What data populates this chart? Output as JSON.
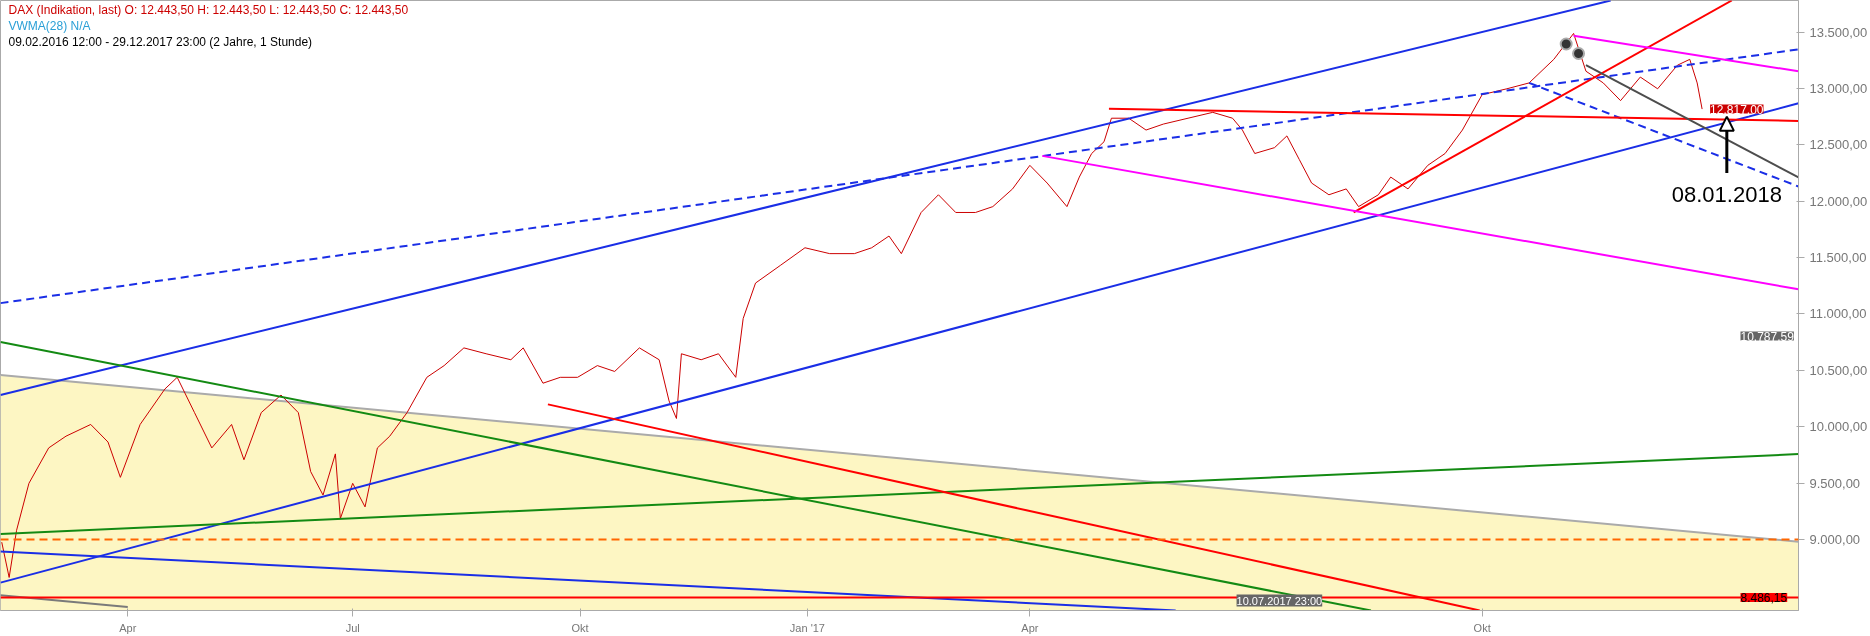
{
  "chart_data": {
    "type": "line",
    "title": "DAX (Indikation, last)  O: 12.443,50  H: 12.443,50  L: 12.443,50  C: 12.443,50",
    "subtitle": "VWMA(28)  N/A",
    "annotations": [
      "09.02.2016 12:00 - 29.12.2017 23:00   (2 Jahre, 1 Stunde)",
      {
        "text": "08.01.2018",
        "x": "2018-01-08",
        "y": 12750
      },
      "10.787,59",
      {
        "text": "10.07.2017 23:00",
        "x": "2017-07-10T23:00"
      }
    ],
    "xlim": [
      "2016-02-09T12:00",
      "2018-02-06"
    ],
    "xticks": [
      {
        "value": "2016-04-01",
        "label": "Apr"
      },
      {
        "value": "2016-07-01",
        "label": "Jul"
      },
      {
        "value": "2016-10-01",
        "label": "Okt"
      },
      {
        "value": "2017-01-01",
        "label": "Jan '17"
      },
      {
        "value": "2017-04-01",
        "label": "Apr"
      },
      {
        "value": "2017-10-01",
        "label": "Okt"
      }
    ],
    "ylim": [
      8370,
      13780
    ],
    "yticks": [
      {
        "value": 9000,
        "label": "9.000,00"
      },
      {
        "value": 9500,
        "label": "9.500,00"
      },
      {
        "value": 10000,
        "label": "10.000,00"
      },
      {
        "value": 10500,
        "label": "10.500,00"
      },
      {
        "value": 11000,
        "label": "11.000,00"
      },
      {
        "value": 11500,
        "label": "11.500,00"
      },
      {
        "value": 12000,
        "label": "12.000,00"
      },
      {
        "value": 12500,
        "label": "12.500,00"
      },
      {
        "value": 13000,
        "label": "13.000,00"
      },
      {
        "value": 13500,
        "label": "13.500,00"
      }
    ],
    "ref_lines": [
      {
        "axis": "y",
        "value": 8486.15,
        "label": "8.486,15",
        "color": "#ff0000",
        "line_style": "solid"
      },
      {
        "axis": "y",
        "value": 9000,
        "color": "#ff6600",
        "line_style": "dashed"
      }
    ],
    "series": [
      {
        "type": "area",
        "color": "#fdf6c3",
        "x": [
          "2016-02-09T12:00",
          "2018-02-06"
        ],
        "values": [
          10459,
          8980
        ]
      },
      {
        "color": "#7a7a7a",
        "x": [
          "2016-02-09T12:00",
          "2016-04-01"
        ],
        "values": [
          8506,
          8400
        ]
      },
      {
        "color": "#cc0000",
        "value_labels": [
          null,
          null,
          null,
          null,
          null,
          null,
          null,
          null,
          null,
          null,
          null,
          null,
          null,
          null,
          null,
          null,
          null,
          null,
          null,
          null,
          null,
          null,
          null,
          null,
          null,
          null,
          null,
          null,
          null,
          null,
          null,
          null,
          null,
          null,
          null,
          null,
          null,
          null,
          null,
          null,
          null,
          null,
          null,
          null,
          null,
          null,
          null,
          null,
          null,
          null,
          null,
          null,
          null,
          null,
          null,
          null,
          null,
          null,
          null,
          null,
          null,
          null,
          null,
          null,
          null,
          null,
          null,
          null,
          null,
          null,
          null,
          null,
          null,
          null,
          null,
          null,
          null,
          null,
          null,
          null,
          null,
          null,
          null,
          null,
          null,
          null,
          null,
          null,
          null,
          null,
          null,
          null,
          null,
          null,
          null,
          null,
          null,
          null,
          null,
          null,
          null,
          null,
          null,
          "12.817,00"
        ],
        "x": [
          "2016-02-10",
          "2016-02-13",
          "2016-02-16",
          "2016-02-21",
          "2016-02-29",
          "2016-03-07",
          "2016-03-17",
          "2016-03-24",
          "2016-03-29",
          "2016-04-06",
          "2016-04-16",
          "2016-04-21",
          "2016-04-28",
          "2016-05-05",
          "2016-05-13",
          "2016-05-18",
          "2016-05-25",
          "2016-06-02",
          "2016-06-09",
          "2016-06-14",
          "2016-06-19",
          "2016-06-24",
          "2016-06-26",
          "2016-07-01",
          "2016-07-06",
          "2016-07-11",
          "2016-07-16",
          "2016-07-23",
          "2016-07-31",
          "2016-08-07",
          "2016-08-15",
          "2016-08-24",
          "2016-09-03",
          "2016-09-08",
          "2016-09-16",
          "2016-09-23",
          "2016-09-30",
          "2016-10-08",
          "2016-10-15",
          "2016-10-25",
          "2016-11-02",
          "2016-11-06",
          "2016-11-09",
          "2016-11-11",
          "2016-11-19",
          "2016-11-26",
          "2016-12-03",
          "2016-12-06",
          "2016-12-11",
          "2016-12-21",
          "2016-12-31",
          "2017-01-10",
          "2017-01-20",
          "2017-01-27",
          "2017-02-03",
          "2017-02-08",
          "2017-02-16",
          "2017-02-23",
          "2017-03-02",
          "2017-03-10",
          "2017-03-17",
          "2017-03-25",
          "2017-04-01",
          "2017-04-08",
          "2017-04-16",
          "2017-04-21",
          "2017-04-26",
          "2017-05-01",
          "2017-05-04",
          "2017-05-11",
          "2017-05-18",
          "2017-05-25",
          "2017-06-04",
          "2017-06-14",
          "2017-06-22",
          "2017-06-26",
          "2017-07-01",
          "2017-07-09",
          "2017-07-14",
          "2017-07-19",
          "2017-07-24",
          "2017-07-31",
          "2017-08-07",
          "2017-08-12",
          "2017-08-20",
          "2017-08-25",
          "2017-09-01",
          "2017-09-09",
          "2017-09-16",
          "2017-09-23",
          "2017-10-01",
          "2017-10-11",
          "2017-10-20",
          "2017-10-30",
          "2017-11-07",
          "2017-11-12",
          "2017-11-19",
          "2017-11-26",
          "2017-12-04",
          "2017-12-11",
          "2017-12-19",
          "2017-12-24",
          "2017-12-27",
          "2017-12-29"
        ],
        "values": [
          8976,
          8663,
          9081,
          9498,
          9812,
          9916,
          10020,
          9864,
          9551,
          10020,
          10334,
          10438,
          10125,
          9812,
          10020,
          9707,
          10125,
          10281,
          10125,
          9602,
          9394,
          9759,
          9185,
          9498,
          9289,
          9812,
          9916,
          10125,
          10438,
          10542,
          10699,
          10647,
          10594,
          10699,
          10386,
          10438,
          10438,
          10542,
          10490,
          10699,
          10594,
          10229,
          10073,
          10647,
          10594,
          10647,
          10438,
          10960,
          11274,
          11430,
          11587,
          11535,
          11535,
          11587,
          11691,
          11535,
          11900,
          12057,
          11900,
          11900,
          11952,
          12109,
          12318,
          12161,
          11952,
          12214,
          12423,
          12527,
          12736,
          12736,
          12631,
          12684,
          12736,
          12788,
          12736,
          12631,
          12423,
          12475,
          12579,
          12370,
          12161,
          12057,
          12109,
          11952,
          12057,
          12214,
          12109,
          12318,
          12423,
          12631,
          12945,
          12997,
          13049,
          13258,
          13488,
          13153,
          13049,
          12892,
          13101,
          12997,
          13206,
          13258,
          13049,
          12817
        ]
      },
      {
        "type": "line",
        "color": "#1a2ee6",
        "x": [
          "2016-02-09T12:00",
          "2017-11-22"
        ],
        "values": [
          10282,
          13780
        ]
      },
      {
        "type": "line",
        "color": "#1a2ee6",
        "x": [
          "2016-02-09T12:00",
          "2018-02-06"
        ],
        "values": [
          8617,
          12868
        ]
      },
      {
        "type": "line",
        "color": "#1a2ee6",
        "line_style": "dashed",
        "x": [
          "2016-02-09T12:00",
          "2018-02-06"
        ],
        "values": [
          11096,
          13347
        ]
      },
      {
        "type": "line",
        "color": "#1a2ee6",
        "line_style": "dashed",
        "x": [
          "2017-10-20",
          "2018-02-06"
        ],
        "values": [
          13049,
          12130
        ]
      },
      {
        "type": "line",
        "color": "#1a2ee6",
        "x": [
          "2016-02-09T12:00",
          "2017-05-30"
        ],
        "values": [
          8893,
          8370
        ]
      },
      {
        "type": "line",
        "color": "#138a13",
        "x": [
          "2016-02-09T12:00",
          "2018-02-06"
        ],
        "values": [
          9049,
          9757
        ]
      },
      {
        "type": "line",
        "color": "#138a13",
        "x": [
          "2016-02-09T12:00",
          "2017-08-17"
        ],
        "values": [
          10752,
          8370
        ]
      },
      {
        "type": "line",
        "color": "#ff0000",
        "x": [
          "2016-09-18",
          "2017-09-30"
        ],
        "values": [
          10198,
          8370
        ]
      },
      {
        "type": "line",
        "color": "#ff0000",
        "x": [
          "2017-05-03",
          "2018-02-06"
        ],
        "values": [
          12819,
          12712
        ]
      },
      {
        "type": "line",
        "color": "#ff0000",
        "x": [
          "2017-08-10",
          "2018-01-10"
        ],
        "values": [
          11900,
          13780
        ]
      },
      {
        "type": "line",
        "color": "#ff00ff",
        "x": [
          "2017-11-07",
          "2018-02-06"
        ],
        "values": [
          13467,
          13152
        ]
      },
      {
        "type": "line",
        "color": "#ff00ff",
        "x": [
          "2017-04-06",
          "2018-02-06"
        ],
        "values": [
          12402,
          11219
        ]
      },
      {
        "color": "#4d4d4d",
        "x": [
          "2017-11-12",
          "2018-02-06"
        ],
        "values": [
          13206,
          12211
        ]
      },
      {
        "type": "scatter",
        "color": "#333333",
        "marker": "circle",
        "x": [
          "2017-11-04",
          "2017-11-09"
        ],
        "values": [
          13394,
          13310
        ]
      }
    ]
  }
}
